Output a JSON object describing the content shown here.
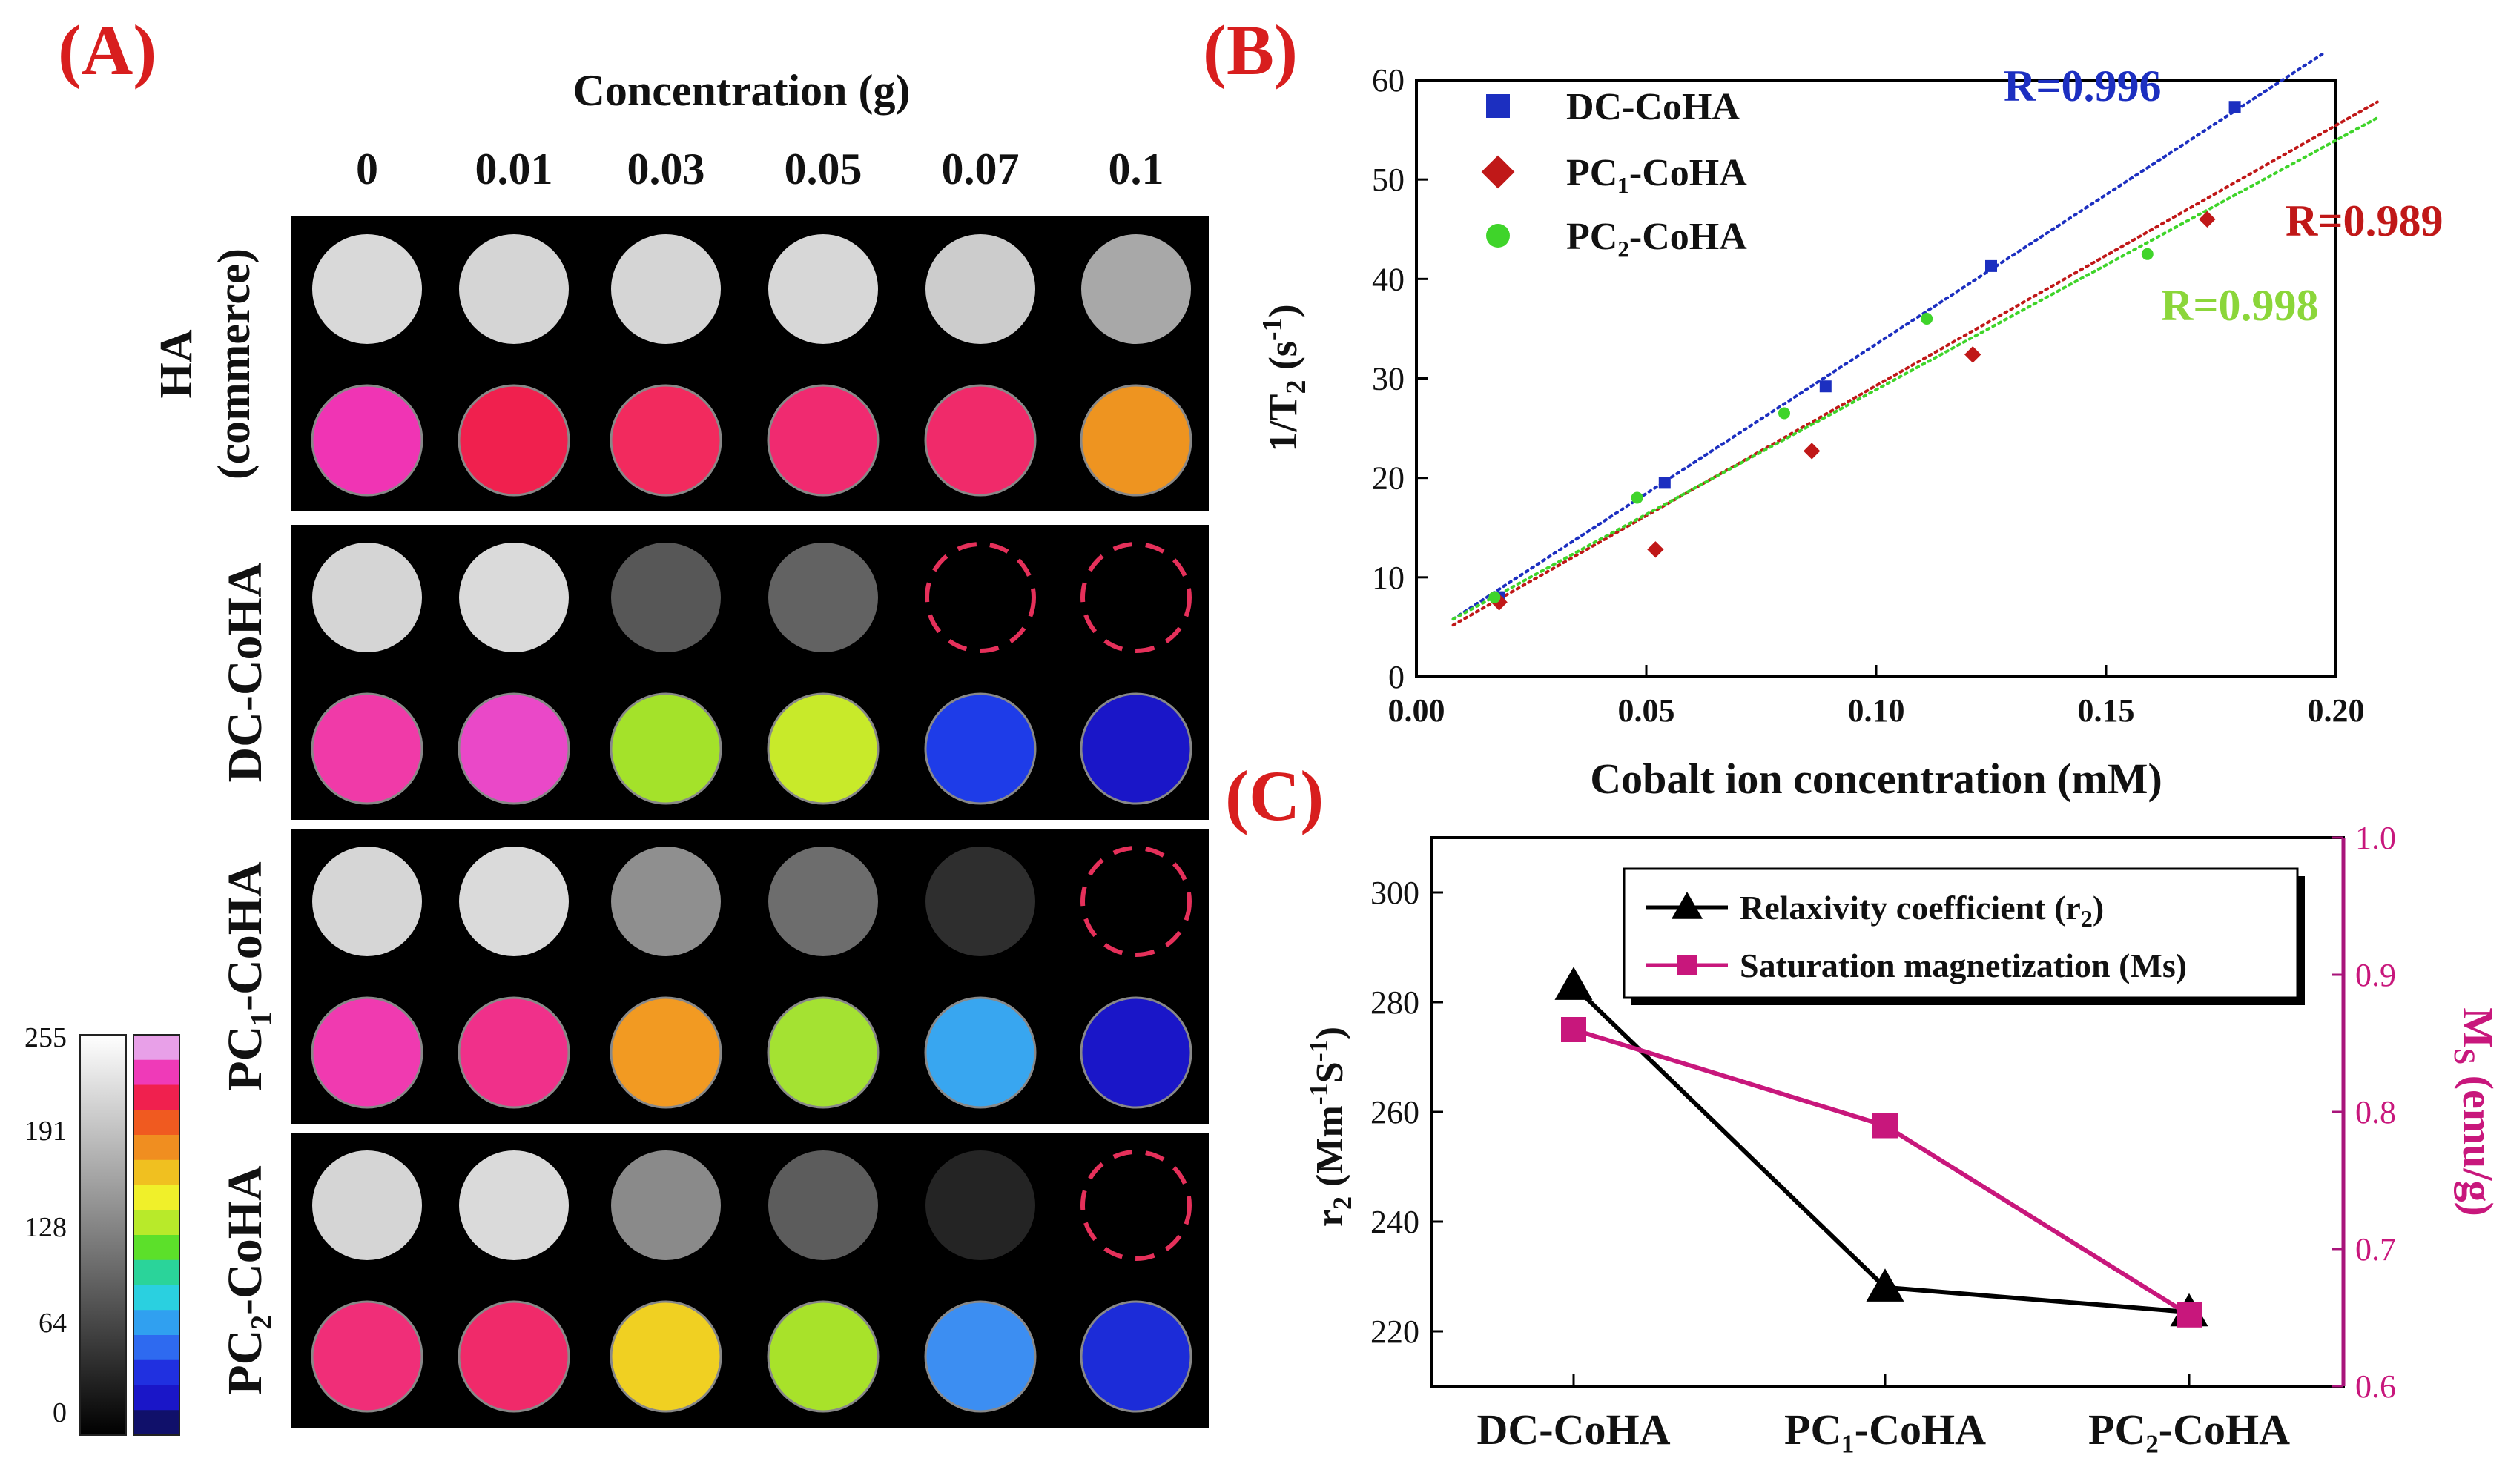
{
  "panel_labels": {
    "a": "(A)",
    "b": "(B)",
    "c": "(C)"
  },
  "panel_a": {
    "column_header": "Concentration (g)",
    "concentrations": [
      "0",
      "0.01",
      "0.03",
      "0.05",
      "0.07",
      "0.1"
    ],
    "rows": [
      {
        "label_line1": "HA",
        "label_line2": "(commerce)",
        "gray": [
          "#d9d9d9",
          "#d5d5d5",
          "#d5d5d5",
          "#d7d7d7",
          "#cccccc",
          "#a8a8a8"
        ],
        "color": [
          "#f034b4",
          "#f0204e",
          "#f22a5e",
          "#f02a70",
          "#f02a6a",
          "#ee9420"
        ],
        "empty": [
          false,
          false,
          false,
          false,
          false,
          false
        ]
      },
      {
        "label_line1": "DC-CoHA",
        "label_line2": "",
        "gray": [
          "#d5d5d5",
          "#dadada",
          "#575757",
          "#626262",
          "#000000",
          "#000000"
        ],
        "color": [
          "#f03aa8",
          "#ea48c8",
          "#a4e22a",
          "#c8ea2a",
          "#1e3ce8",
          "#1a16c8"
        ],
        "empty": [
          false,
          false,
          false,
          false,
          true,
          true
        ]
      },
      {
        "label_line1": "PC₁-CoHA",
        "label_line2": "",
        "gray": [
          "#d6d6d6",
          "#dadada",
          "#8f8f8f",
          "#6d6d6d",
          "#2e2e2e",
          "#000000"
        ],
        "color": [
          "#f03ab0",
          "#f0308a",
          "#f29a22",
          "#a4e232",
          "#38a6f0",
          "#1a16c8"
        ],
        "empty": [
          false,
          false,
          false,
          false,
          false,
          true
        ]
      },
      {
        "label_line1": "PC₂-CoHA",
        "label_line2": "",
        "gray": [
          "#d5d5d5",
          "#dadada",
          "#8a8a8a",
          "#5c5c5c",
          "#242424",
          "#000000"
        ],
        "color": [
          "#f02e78",
          "#f02a6a",
          "#f0d022",
          "#a8e22a",
          "#3c8ef2",
          "#1c2cd8"
        ],
        "empty": [
          false,
          false,
          false,
          false,
          false,
          true
        ]
      }
    ],
    "colorbar_ticks": [
      "255",
      "191",
      "128",
      "64",
      "0"
    ]
  },
  "chart_data": [
    {
      "type": "scatter",
      "panel": "(B)",
      "xlabel": "Cobalt ion concentration (mM)",
      "ylabel": "1/T2 (s-1)",
      "ylabel_parts": {
        "main": "1/T",
        "sub": "2",
        "unit_open": " (s",
        "sup": "-1",
        "unit_close": ")"
      },
      "xlim": [
        0,
        0.2
      ],
      "ylim": [
        0,
        60
      ],
      "xticks": [
        "0.00",
        "0.05",
        "0.10",
        "0.15",
        "0.20"
      ],
      "yticks": [
        "0",
        "10",
        "20",
        "30",
        "40",
        "50",
        "60"
      ],
      "legend": [
        "DC-CoHA",
        "PC₁-CoHA",
        "PC₂-CoHA"
      ],
      "series": [
        {
          "name": "DC-CoHA",
          "color": "#1c2fc0",
          "marker": "square",
          "x": [
            0.018,
            0.054,
            0.089,
            0.125,
            0.178
          ],
          "y": [
            8,
            19.5,
            29.2,
            41.3,
            57.3
          ],
          "fit": {
            "x": [
              0.008,
              0.197
            ],
            "y": [
              5.8,
              62.6
            ]
          },
          "r_label": "R=0.996"
        },
        {
          "name": "PC₁-CoHA",
          "color": "#c01818",
          "marker": "diamond",
          "x": [
            0.018,
            0.052,
            0.086,
            0.121,
            0.172
          ],
          "y": [
            7.5,
            12.8,
            22.7,
            32.4,
            46
          ],
          "fit": {
            "x": [
              0.008,
              0.209
            ],
            "y": [
              5.2,
              57.8
            ]
          },
          "r_label": "R=0.989"
        },
        {
          "name": "PC₂-CoHA",
          "color": "#3fd42a",
          "marker": "circle",
          "x": [
            0.017,
            0.048,
            0.08,
            0.111,
            0.159
          ],
          "y": [
            8,
            18,
            26.5,
            36,
            42.5
          ],
          "fit": {
            "x": [
              0.008,
              0.209
            ],
            "y": [
              5.8,
              56.2
            ]
          },
          "r_label": "R=0.998"
        }
      ]
    },
    {
      "type": "line",
      "panel": "(C)",
      "categories": [
        "DC-CoHA",
        "PC₁-CoHA",
        "PC₂-CoHA"
      ],
      "ylabel": "r2 (Mm-1S-1)",
      "ylabel_parts": {
        "main": "r",
        "sub": "2",
        "unit_a": " (Mm",
        "sup_a": "-1",
        "unit_b": "S",
        "sup_b": "-1",
        "unit_close": ")"
      },
      "ylabel_right": "Ms (emu/g)",
      "ylabel_right_parts": {
        "main": "M",
        "sub": "S",
        "unit": " (emu/g)"
      },
      "ylim_left": [
        210,
        310
      ],
      "ylim_right": [
        0.6,
        1.0
      ],
      "yticks_left": [
        "220",
        "240",
        "260",
        "280",
        "300"
      ],
      "yticks_right": [
        "0.6",
        "0.7",
        "0.8",
        "0.9",
        "1.0"
      ],
      "series": [
        {
          "name": "Relaxivity coefficient (r2)",
          "legend_main": "Relaxivity coefficient (r",
          "legend_sub": "2",
          "legend_close": ")",
          "axis": "left",
          "color": "#000000",
          "marker": "triangle",
          "values": [
            283,
            228,
            223.5
          ]
        },
        {
          "name": "Saturation magnetization (Ms)",
          "legend_main": "Saturation magnetization (Ms)",
          "legend_sub": "",
          "legend_close": "",
          "axis": "right",
          "color": "#c8177c",
          "marker": "square",
          "values": [
            0.86,
            0.79,
            0.652
          ]
        }
      ]
    }
  ]
}
